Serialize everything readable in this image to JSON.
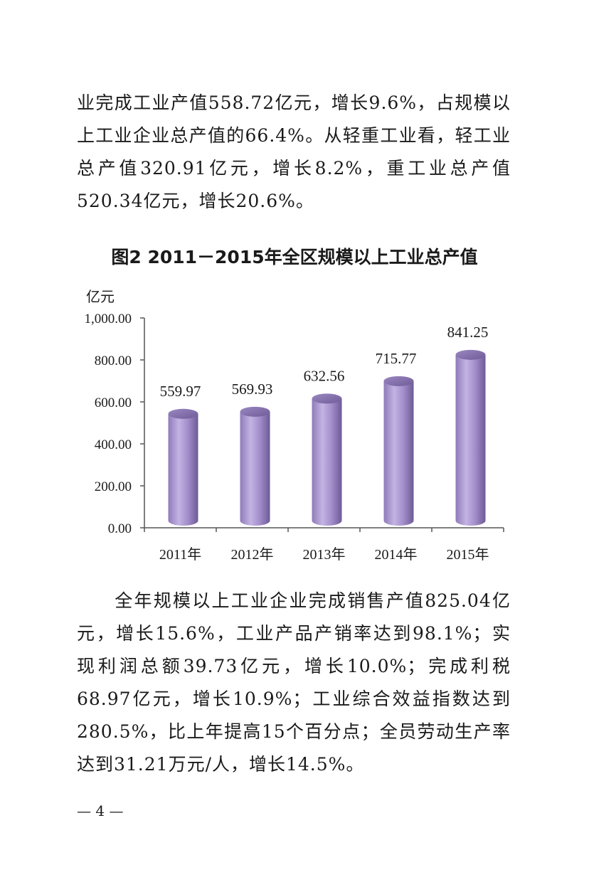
{
  "paragraphs": {
    "p1": "业完成工业产值558.72亿元，增长9.6%，占规模以上工业企业总产值的66.4%。从轻重工业看，轻工业总产值320.91亿元，增长8.2%，重工业总产值520.34亿元，增长20.6%。",
    "p2": "全年规模以上工业企业完成销售产值825.04亿元，增长15.6%，工业产品产销率达到98.1%；实现利润总额39.73亿元，增长10.0%；完成利税68.97亿元，增长10.9%；工业综合效益指数达到280.5%，比上年提高15个百分点；全员劳动生产率达到31.21万元/人，增长14.5%。"
  },
  "figure": {
    "title": "图2 2011－2015年全区规模以上工业总产值"
  },
  "chart_data": {
    "type": "bar",
    "categories": [
      "2011年",
      "2012年",
      "2013年",
      "2014年",
      "2015年"
    ],
    "values": [
      559.97,
      569.93,
      632.56,
      715.77,
      841.25
    ],
    "data_labels": [
      "559.97",
      "569.93",
      "632.56",
      "715.77",
      "841.25"
    ],
    "title": "图2 2011－2015年全区规模以上工业总产值",
    "ylabel": "亿元",
    "ylim": [
      0,
      1000
    ],
    "yticks": [
      "0.00",
      "200.00",
      "400.00",
      "600.00",
      "800.00",
      "1,000.00"
    ],
    "grid": false,
    "bar_color": "#a995cf",
    "bar_style": "cylinder"
  },
  "footer": {
    "page_number": "— 4 —"
  }
}
